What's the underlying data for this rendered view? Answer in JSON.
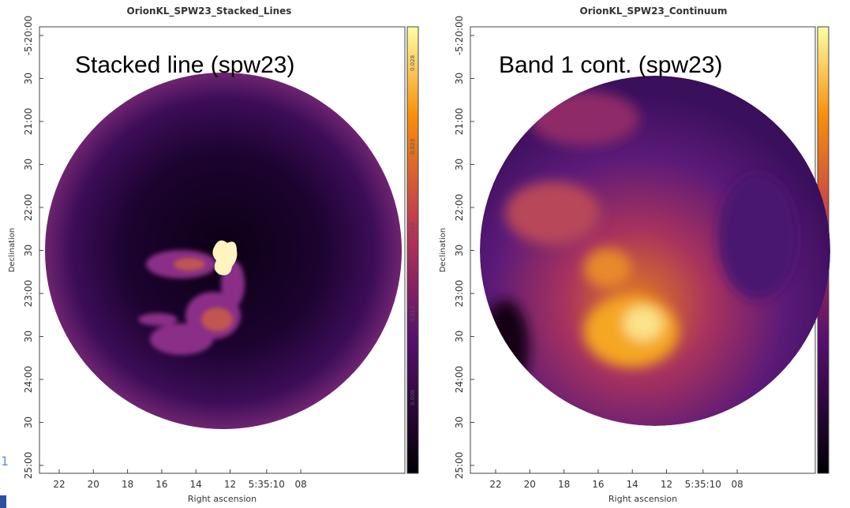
{
  "panels": [
    {
      "title": "OrionKL_SPW23_Stacked_Lines",
      "overlay_label": "Stacked line (spw23)",
      "y_axis_label": "Declination",
      "x_axis_label": "Right ascension",
      "y_ticks": [
        "-5:20:00",
        "30",
        "21:00",
        "30",
        "22:00",
        "30",
        "23:00",
        "30",
        "24:00",
        "30",
        "25:00"
      ],
      "x_ticks": [
        "22",
        "20",
        "18",
        "16",
        "14",
        "12",
        "5:35:10",
        "08"
      ],
      "colorbar_ticks": [
        "0.028",
        "0.023",
        "0.018",
        "0.013",
        "0.008"
      ]
    },
    {
      "title": "OrionKL_SPW23_Continuum",
      "overlay_label": "Band 1 cont. (spw23)",
      "y_axis_label": "Declination",
      "x_axis_label": "Right ascension",
      "y_ticks": [
        "-5:20:00",
        "30",
        "21:00",
        "30",
        "22:00",
        "30",
        "23:00",
        "30",
        "24:00",
        "30",
        "25:00"
      ],
      "x_ticks": [
        "22",
        "20",
        "18",
        "16",
        "14",
        "12",
        "5:35:10",
        "08"
      ],
      "colorbar_ticks": []
    }
  ],
  "slide_number": "1"
}
